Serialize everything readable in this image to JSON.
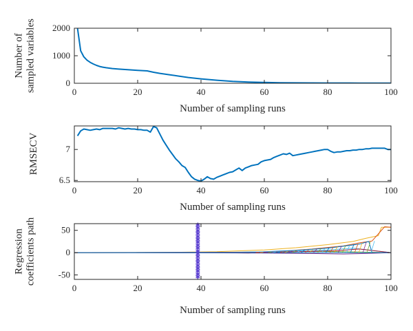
{
  "chart_data": [
    {
      "type": "line",
      "xlabel": "Number of sampling runs",
      "ylabel": [
        "Number of",
        "sampled variables"
      ],
      "xlim": [
        0,
        100
      ],
      "ylim": [
        0,
        2000
      ],
      "xticks": [
        "0",
        "20",
        "40",
        "60",
        "80",
        "100"
      ],
      "yticks": [
        "0",
        "1000",
        "2000"
      ],
      "grid": false,
      "series": [
        {
          "color": "#0072BD",
          "x": [
            1,
            2,
            3,
            4,
            5,
            6,
            7,
            8,
            9,
            10,
            12,
            14,
            16,
            18,
            20,
            22,
            23,
            25,
            27,
            30,
            33,
            36,
            40,
            45,
            50,
            55,
            60,
            65,
            70,
            75,
            80,
            85,
            90,
            95,
            100
          ],
          "y": [
            2000,
            1180,
            960,
            840,
            760,
            700,
            650,
            610,
            585,
            565,
            535,
            515,
            500,
            485,
            470,
            455,
            450,
            400,
            360,
            310,
            260,
            210,
            160,
            110,
            70,
            45,
            30,
            20,
            15,
            12,
            10,
            9,
            8,
            7,
            6
          ]
        }
      ]
    },
    {
      "type": "line",
      "xlabel": "Number of sampling runs",
      "ylabel": [
        "RMSECV"
      ],
      "xlim": [
        0,
        100
      ],
      "ylim": [
        6.48,
        7.38
      ],
      "xticks": [
        "0",
        "20",
        "40",
        "60",
        "80",
        "100"
      ],
      "yticks": [
        "6.5",
        "7"
      ],
      "grid": false,
      "series": [
        {
          "color": "#0072BD",
          "x": [
            1,
            2,
            3,
            4,
            5,
            6,
            7,
            8,
            9,
            10,
            11,
            12,
            13,
            14,
            15,
            16,
            17,
            18,
            19,
            20,
            21,
            22,
            23,
            24,
            25,
            26,
            27,
            28,
            29,
            30,
            31,
            32,
            33,
            34,
            35,
            36,
            37,
            38,
            39,
            40,
            41,
            42,
            43,
            44,
            45,
            46,
            47,
            48,
            49,
            50,
            51,
            52,
            53,
            54,
            55,
            56,
            57,
            58,
            59,
            60,
            61,
            62,
            63,
            64,
            65,
            66,
            67,
            68,
            69,
            70,
            71,
            72,
            73,
            74,
            75,
            76,
            77,
            78,
            79,
            80,
            81,
            82,
            83,
            84,
            85,
            86,
            87,
            88,
            89,
            90,
            91,
            92,
            93,
            94,
            95,
            96,
            97,
            98,
            99,
            100
          ],
          "y": [
            7.22,
            7.3,
            7.33,
            7.32,
            7.31,
            7.32,
            7.33,
            7.32,
            7.34,
            7.34,
            7.34,
            7.34,
            7.33,
            7.35,
            7.34,
            7.33,
            7.34,
            7.33,
            7.33,
            7.32,
            7.32,
            7.31,
            7.31,
            7.28,
            7.37,
            7.35,
            7.25,
            7.15,
            7.07,
            6.99,
            6.92,
            6.85,
            6.8,
            6.74,
            6.71,
            6.63,
            6.56,
            6.52,
            6.5,
            6.49,
            6.52,
            6.56,
            6.53,
            6.52,
            6.55,
            6.57,
            6.59,
            6.61,
            6.63,
            6.64,
            6.67,
            6.7,
            6.66,
            6.7,
            6.72,
            6.74,
            6.75,
            6.76,
            6.8,
            6.82,
            6.83,
            6.84,
            6.87,
            6.89,
            6.91,
            6.93,
            6.92,
            6.94,
            6.9,
            6.91,
            6.92,
            6.93,
            6.94,
            6.95,
            6.96,
            6.97,
            6.98,
            6.99,
            7.0,
            7.0,
            6.97,
            6.95,
            6.96,
            6.96,
            6.97,
            6.98,
            6.98,
            6.99,
            6.99,
            7.0,
            7.0,
            7.01,
            7.01,
            7.02,
            7.02,
            7.02,
            7.02,
            7.02,
            7.0,
            7.0
          ]
        }
      ]
    },
    {
      "type": "line",
      "xlabel": "Number of sampling runs",
      "ylabel": [
        "Regression",
        "coefficients path"
      ],
      "xlim": [
        0,
        100
      ],
      "ylim": [
        -60,
        65
      ],
      "xticks": [
        "0",
        "20",
        "40",
        "60",
        "80",
        "100"
      ],
      "yticks": [
        "-50",
        "0",
        "50"
      ],
      "grid": false,
      "marker_x": 39,
      "marker_color": "#5B3FD0",
      "series": [
        {
          "color": "#EDB120",
          "x": [
            0,
            30,
            45,
            60,
            70,
            80,
            88,
            92,
            96,
            97,
            100
          ],
          "y": [
            0,
            0.5,
            2,
            6,
            11,
            18,
            25,
            32,
            38,
            57,
            57
          ]
        },
        {
          "color": "#D95319",
          "x": [
            0,
            40,
            55,
            65,
            75,
            85,
            90,
            94,
            98,
            100
          ],
          "y": [
            0,
            0.5,
            -1,
            3,
            8,
            15,
            22,
            26,
            58,
            57
          ]
        },
        {
          "color": "#0072BD",
          "x": [
            0,
            50,
            60,
            70,
            80,
            90,
            93,
            94,
            100
          ],
          "y": [
            0,
            0.5,
            2,
            5,
            10,
            19,
            25,
            0,
            0
          ]
        },
        {
          "color": "#77AC30",
          "x": [
            0,
            45,
            55,
            65,
            75,
            85,
            100
          ],
          "y": [
            0,
            0.5,
            1,
            2,
            3,
            2,
            0
          ]
        },
        {
          "color": "#7E2F8E",
          "x": [
            0,
            40,
            60,
            75,
            85,
            92,
            100
          ],
          "y": [
            0,
            -0.5,
            -1,
            -2,
            -3,
            -2,
            0
          ]
        },
        {
          "color": "#4DBEEE",
          "x": [
            0,
            50,
            70,
            80,
            88,
            100
          ],
          "y": [
            0,
            1,
            3,
            6,
            10,
            0
          ]
        },
        {
          "color": "#A2142F",
          "x": [
            0,
            55,
            70,
            82,
            90,
            100
          ],
          "y": [
            0,
            0.5,
            2,
            4,
            8,
            0
          ]
        },
        {
          "color": "#0072BD",
          "x": [
            0,
            100
          ],
          "y": [
            0,
            0
          ]
        }
      ]
    }
  ]
}
